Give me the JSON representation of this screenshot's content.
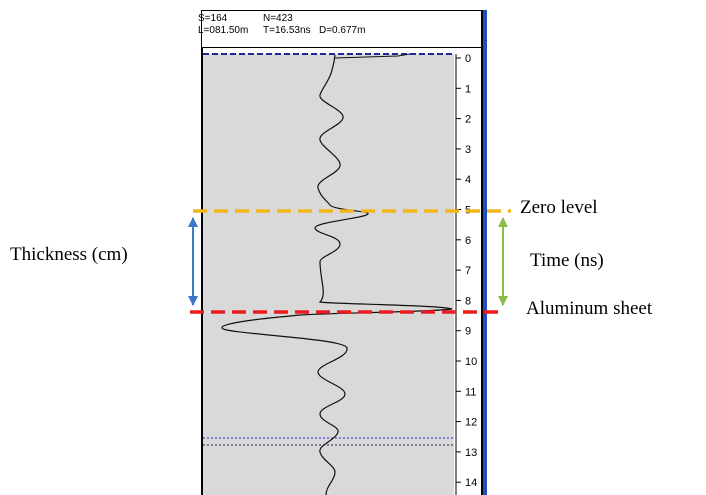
{
  "header": {
    "s_value": "S=164",
    "n_value": "N=423",
    "l_value": "L=081.50m",
    "t_value": "T=16.53ns",
    "d_value": "D=0.677m"
  },
  "scale": {
    "ticks": [
      0,
      1,
      2,
      3,
      4,
      5,
      6,
      7,
      8,
      9,
      10,
      11,
      12,
      13,
      14
    ]
  },
  "annotations": {
    "zero_level": "Zero level",
    "aluminum_sheet": "Aluminum sheet",
    "thickness": "Thickness (cm)",
    "time": "Time (ns)"
  },
  "colors": {
    "zero_line": "#f2b51d",
    "aluminum_line": "#ee1c1c",
    "thickness_arrow": "#3c78c8",
    "time_arrow": "#8bbb4b",
    "scrollbar": "#1f4fc0",
    "plot_bg": "#d9d9d9",
    "dotted_line": "#2233cc"
  }
}
